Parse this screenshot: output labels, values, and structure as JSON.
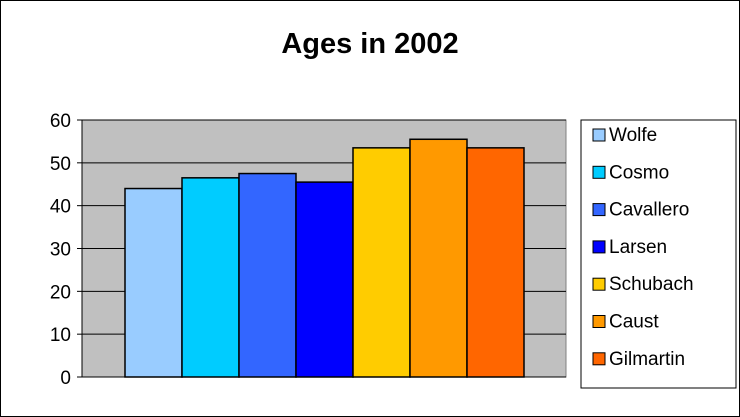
{
  "chart_data": {
    "type": "bar",
    "title": "Ages in 2002",
    "xlabel": "",
    "ylabel": "",
    "ylim": [
      0,
      60
    ],
    "yticks": [
      "0",
      "10",
      "20",
      "30",
      "40",
      "50",
      "60"
    ],
    "grid": true,
    "legend_position": "right",
    "plot_background": "#c0c0c0",
    "series": [
      {
        "name": "Wolfe",
        "values": [
          44
        ],
        "color": "#99ccff"
      },
      {
        "name": "Cosmo",
        "values": [
          46.5
        ],
        "color": "#00ccff"
      },
      {
        "name": "Cavallero",
        "values": [
          47.5
        ],
        "color": "#3366ff"
      },
      {
        "name": "Larsen",
        "values": [
          45.5
        ],
        "color": "#0000ff"
      },
      {
        "name": "Schubach",
        "values": [
          53.5
        ],
        "color": "#ffcc00"
      },
      {
        "name": "Caust",
        "values": [
          55.5
        ],
        "color": "#ff9900"
      },
      {
        "name": "Gilmartin",
        "values": [
          53.5
        ],
        "color": "#ff6600"
      }
    ]
  }
}
